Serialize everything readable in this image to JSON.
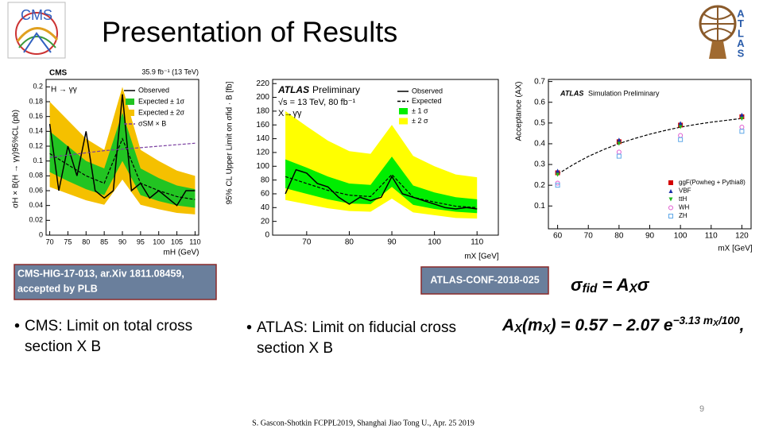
{
  "title": "Presentation of Results",
  "cms_logo": "CMS",
  "atlas_logo": [
    "A",
    "T",
    "L",
    "A",
    "S"
  ],
  "plots": [
    {
      "type": "line",
      "texts": [
        "CMS",
        "35.9 fb⁻¹ (13 TeV)",
        "H → γγ"
      ],
      "xlabel": "mH (GeV)",
      "ylabel": "σH × B(H → γγ)95%CL (pb)",
      "xlim": [
        69,
        111
      ],
      "ylim": [
        0,
        0.21
      ],
      "xticks": [
        70,
        75,
        80,
        85,
        90,
        95,
        100,
        105,
        110
      ],
      "yticks": [
        0,
        0.02,
        0.04,
        0.06,
        0.08,
        0.1,
        0.12,
        0.14,
        0.16,
        0.18,
        0.2
      ],
      "x": [
        70,
        75,
        80,
        85,
        90,
        95,
        100,
        105,
        110
      ],
      "bands": [
        {
          "name": "Expected ± 2σ",
          "color": "#f5c000",
          "lower": [
            0.065,
            0.056,
            0.047,
            0.041,
            0.075,
            0.041,
            0.035,
            0.03,
            0.028
          ],
          "upper": [
            0.18,
            0.155,
            0.13,
            0.115,
            0.2,
            0.115,
            0.1,
            0.087,
            0.08
          ]
        },
        {
          "name": "Expected ± 1σ",
          "color": "#22c422",
          "lower": [
            0.085,
            0.073,
            0.062,
            0.054,
            0.1,
            0.054,
            0.046,
            0.04,
            0.037
          ],
          "upper": [
            0.14,
            0.12,
            0.1,
            0.09,
            0.165,
            0.09,
            0.077,
            0.067,
            0.062
          ]
        }
      ],
      "series": [
        {
          "name": "Observed",
          "color": "#000000",
          "x": [
            70,
            72.5,
            75,
            77.5,
            80,
            82.5,
            85,
            87.5,
            90,
            92.5,
            95,
            97.5,
            100,
            102.5,
            105,
            107.5,
            110
          ],
          "values": [
            0.15,
            0.06,
            0.12,
            0.08,
            0.14,
            0.06,
            0.05,
            0.06,
            0.19,
            0.06,
            0.07,
            0.05,
            0.06,
            0.05,
            0.04,
            0.06,
            0.06
          ]
        },
        {
          "color": "#000000",
          "dash": true,
          "values": [
            0.11,
            0.095,
            0.08,
            0.07,
            0.13,
            0.07,
            0.06,
            0.052,
            0.048
          ]
        },
        {
          "name": "σSM × B",
          "color": "#7a3fa0",
          "dash": true,
          "values": [
            0.105,
            0.108,
            0.111,
            0.114,
            0.116,
            0.118,
            0.12,
            0.122,
            0.124
          ]
        }
      ]
    },
    {
      "type": "line",
      "texts": [
        "ATLAS",
        "Preliminary",
        "√s = 13 TeV, 80 fb⁻¹",
        "X→γγ"
      ],
      "xlabel": "mX [GeV]",
      "ylabel": "95% CL Upper Limit on σfid · B [fb]",
      "xlim": [
        62,
        115
      ],
      "ylim": [
        0,
        226
      ],
      "xticks": [
        70,
        80,
        90,
        100,
        110
      ],
      "yticks": [
        0,
        20,
        40,
        60,
        80,
        100,
        120,
        140,
        160,
        180,
        200,
        220
      ],
      "x": [
        65,
        70,
        75,
        80,
        85,
        90,
        95,
        100,
        105,
        110
      ],
      "bands": [
        {
          "name": "± 2 σ",
          "color": "#ffff00",
          "lower": [
            51,
            45,
            39,
            35,
            34,
            53,
            33,
            29,
            25,
            24
          ],
          "upper": [
            180,
            158,
            137,
            122,
            118,
            160,
            115,
            100,
            88,
            84
          ]
        },
        {
          "name": "± 1 σ",
          "color": "#00ee00",
          "lower": [
            68,
            60,
            52,
            46,
            45,
            70,
            44,
            38,
            34,
            32
          ],
          "upper": [
            110,
            98,
            85,
            75,
            73,
            114,
            72,
            62,
            55,
            52
          ]
        }
      ],
      "series": [
        {
          "name": "Observed",
          "color": "#000000",
          "x": [
            65,
            67.5,
            70,
            72.5,
            75,
            77.5,
            80,
            82.5,
            85,
            87.5,
            90,
            92.5,
            95,
            97.5,
            100,
            102.5,
            105,
            107.5,
            110
          ],
          "values": [
            60,
            95,
            90,
            75,
            70,
            55,
            45,
            55,
            50,
            55,
            85,
            60,
            55,
            50,
            45,
            40,
            38,
            40,
            38
          ]
        },
        {
          "name": "Expected",
          "color": "#000000",
          "dash": true,
          "values": [
            85,
            75,
            65,
            58,
            56,
            88,
            55,
            48,
            42,
            40
          ]
        }
      ]
    },
    {
      "type": "scatter",
      "texts": [
        "ATLAS",
        "Simulation Preliminary"
      ],
      "xlabel": "mX [GeV]",
      "ylabel": "Acceptance (AX)",
      "xlim": [
        57,
        123
      ],
      "ylim": [
        -0.01,
        0.71
      ],
      "xticks": [
        60,
        70,
        80,
        90,
        100,
        110,
        120
      ],
      "yticks": [
        0.1,
        0.2,
        0.3,
        0.4,
        0.5,
        0.6,
        0.7
      ],
      "x": [
        60,
        80,
        100,
        120
      ],
      "bands": [],
      "series": [
        {
          "color": "#000000",
          "dash": true,
          "x": [
            60,
            65,
            70,
            75,
            80,
            85,
            90,
            95,
            100,
            105,
            110,
            115,
            120
          ],
          "values": [
            0.253,
            0.299,
            0.339,
            0.372,
            0.401,
            0.425,
            0.446,
            0.464,
            0.48,
            0.493,
            0.504,
            0.513,
            0.522
          ]
        },
        {
          "name": "ggF(Powheg + Pythia8)",
          "color": "#d40000",
          "marker": "square",
          "values": [
            0.26,
            0.41,
            0.49,
            0.53
          ]
        },
        {
          "name": "VBF",
          "color": "#1a2fa8",
          "marker": "triangle",
          "values": [
            0.27,
            0.42,
            0.5,
            0.54
          ]
        },
        {
          "name": "ttH",
          "color": "#1fb81f",
          "marker": "triangle-down",
          "values": [
            0.25,
            0.4,
            0.48,
            0.52
          ]
        },
        {
          "name": "WH",
          "color": "#e05ad0",
          "marker": "circle-open",
          "values": [
            0.21,
            0.36,
            0.44,
            0.48
          ]
        },
        {
          "name": "ZH",
          "color": "#5fa8e8",
          "marker": "square-open",
          "values": [
            0.2,
            0.34,
            0.42,
            0.46
          ]
        }
      ]
    }
  ],
  "references": [
    [
      "CMS-HIG-17-013,  ar.Xiv 1811.08459,",
      "accepted by PLB"
    ],
    [
      "ATLAS-CONF-2018-025"
    ]
  ],
  "bullets": [
    [
      "CMS:  Limit on total cross",
      "section  X B"
    ],
    [
      "ATLAS:  Limit on fiducial cross",
      "section  X B"
    ]
  ],
  "formulas": [
    [
      {
        "text": "σ"
      },
      {
        "text": "fid",
        "style": "sub"
      },
      {
        "text": " = "
      },
      {
        "text": "A"
      },
      {
        "text": "X",
        "style": "sub"
      },
      {
        "text": "σ"
      }
    ],
    [
      {
        "text": "A"
      },
      {
        "text": "X",
        "style": "sub"
      },
      {
        "text": "(m"
      },
      {
        "text": "X",
        "style": "sub"
      },
      {
        "text": ") = 0.57 − 2.07 "
      },
      {
        "text": "e"
      },
      {
        "text": "−3.13 m",
        "style": "sup"
      },
      {
        "text": "X",
        "style": "supsub"
      },
      {
        "text": "/100",
        "style": "sup"
      },
      {
        "text": ","
      }
    ]
  ],
  "page_number": "9",
  "footer": "S. Gascon-Shotkin FCPPL2019, Shanghai Jiao Tong U., Apr. 25 2019"
}
